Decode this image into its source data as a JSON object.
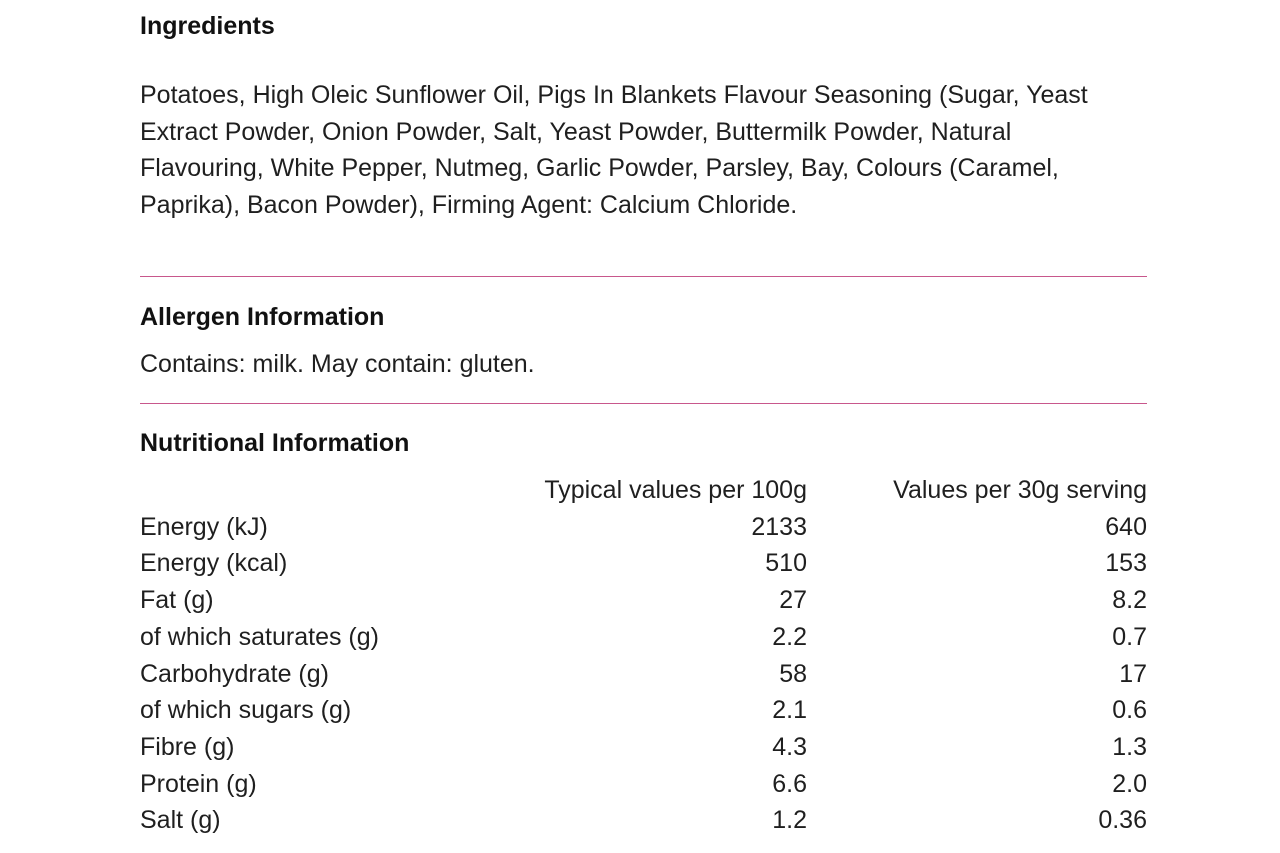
{
  "ingredients": {
    "heading": "Ingredients",
    "text": "Potatoes, High Oleic Sunflower Oil, Pigs In Blankets Flavour Seasoning (Sugar, Yeast Extract Powder, Onion Powder, Salt, Yeast Powder, Buttermilk Powder, Natural Flavouring, White Pepper, Nutmeg, Garlic Powder, Parsley, Bay, Colours (Caramel, Paprika), Bacon Powder), Firming Agent: Calcium Chloride."
  },
  "allergens": {
    "heading": "Allergen Information",
    "text": "Contains: milk. May contain: gluten."
  },
  "nutrition": {
    "heading": "Nutritional Information",
    "columns": {
      "per_100g": "Typical values per 100g",
      "per_serving": "Values per 30g serving"
    },
    "rows": [
      {
        "label": "Energy (kJ)",
        "per_100g": "2133",
        "per_serving": "640"
      },
      {
        "label": "Energy (kcal)",
        "per_100g": "510",
        "per_serving": "153"
      },
      {
        "label": "Fat (g)",
        "per_100g": "27",
        "per_serving": "8.2"
      },
      {
        "label": "of which saturates (g)",
        "per_100g": "2.2",
        "per_serving": "0.7"
      },
      {
        "label": "Carbohydrate (g)",
        "per_100g": "58",
        "per_serving": "17"
      },
      {
        "label": "of which sugars (g)",
        "per_100g": "2.1",
        "per_serving": "0.6"
      },
      {
        "label": "Fibre (g)",
        "per_100g": "4.3",
        "per_serving": "1.3"
      },
      {
        "label": "Protein (g)",
        "per_100g": "6.6",
        "per_serving": "2.0"
      },
      {
        "label": "Salt (g)",
        "per_100g": "1.2",
        "per_serving": "0.36"
      }
    ]
  },
  "colors": {
    "divider": "#c8578c",
    "text": "#1f1f1f"
  }
}
